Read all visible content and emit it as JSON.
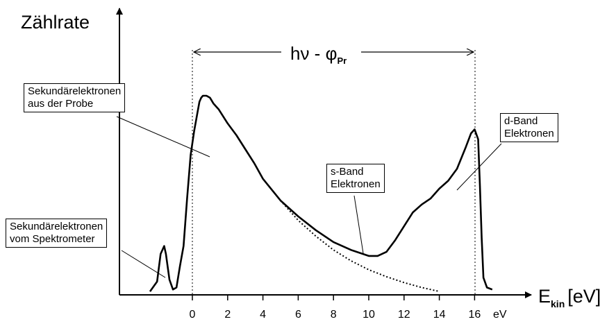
{
  "y_axis_title": "Zählrate",
  "x_axis_title": {
    "main": "E",
    "subscript": "kin",
    "unit": "[eV]"
  },
  "x_unit_label": "eV",
  "x_ticks": [
    "0",
    "2",
    "4",
    "6",
    "8",
    "10",
    "12",
    "14",
    "16"
  ],
  "span_label": {
    "main": "hν - φ",
    "subscript": "Pr"
  },
  "labels": {
    "secondary_sample": "Sekundärelektronen\naus der Probe",
    "secondary_spectrometer": "Sekundärelektronen\nvom Spektrometer",
    "s_band": "s-Band\nElektronen",
    "d_band": "d-Band\nElektronen"
  },
  "curve_kin_energy_ev": [
    -2.4,
    -2.0,
    -1.8,
    -1.6,
    -1.5,
    -1.3,
    -1.1,
    -0.9,
    -0.7,
    -0.5,
    -0.3,
    -0.1,
    0.1,
    0.3,
    0.4,
    0.5,
    0.6,
    0.8,
    1.0,
    1.2,
    1.5,
    2,
    2.5,
    3,
    3.5,
    4,
    5,
    6,
    7,
    8,
    9,
    10,
    10.5,
    11,
    11.5,
    12,
    12.5,
    13,
    13.5,
    14,
    14.5,
    15,
    15.5,
    15.8,
    16.0,
    16.2,
    16.3,
    16.4,
    16.5,
    16.7,
    17.0
  ],
  "curve_count_rel": [
    0.01,
    0.06,
    0.2,
    0.24,
    0.2,
    0.07,
    0.02,
    0.03,
    0.14,
    0.24,
    0.48,
    0.7,
    0.82,
    0.92,
    0.97,
    0.99,
    1.0,
    1.0,
    0.99,
    0.96,
    0.93,
    0.86,
    0.8,
    0.73,
    0.66,
    0.58,
    0.47,
    0.39,
    0.32,
    0.26,
    0.22,
    0.19,
    0.19,
    0.21,
    0.27,
    0.34,
    0.41,
    0.45,
    0.48,
    0.53,
    0.57,
    0.63,
    0.74,
    0.81,
    0.83,
    0.78,
    0.55,
    0.28,
    0.08,
    0.03,
    0.02
  ],
  "background_kin_energy_ev": [
    5,
    6,
    7,
    8,
    9,
    10,
    11,
    12,
    13,
    14
  ],
  "background_count_rel": [
    0.47,
    0.37,
    0.29,
    0.22,
    0.165,
    0.12,
    0.085,
    0.055,
    0.03,
    0.01
  ]
}
